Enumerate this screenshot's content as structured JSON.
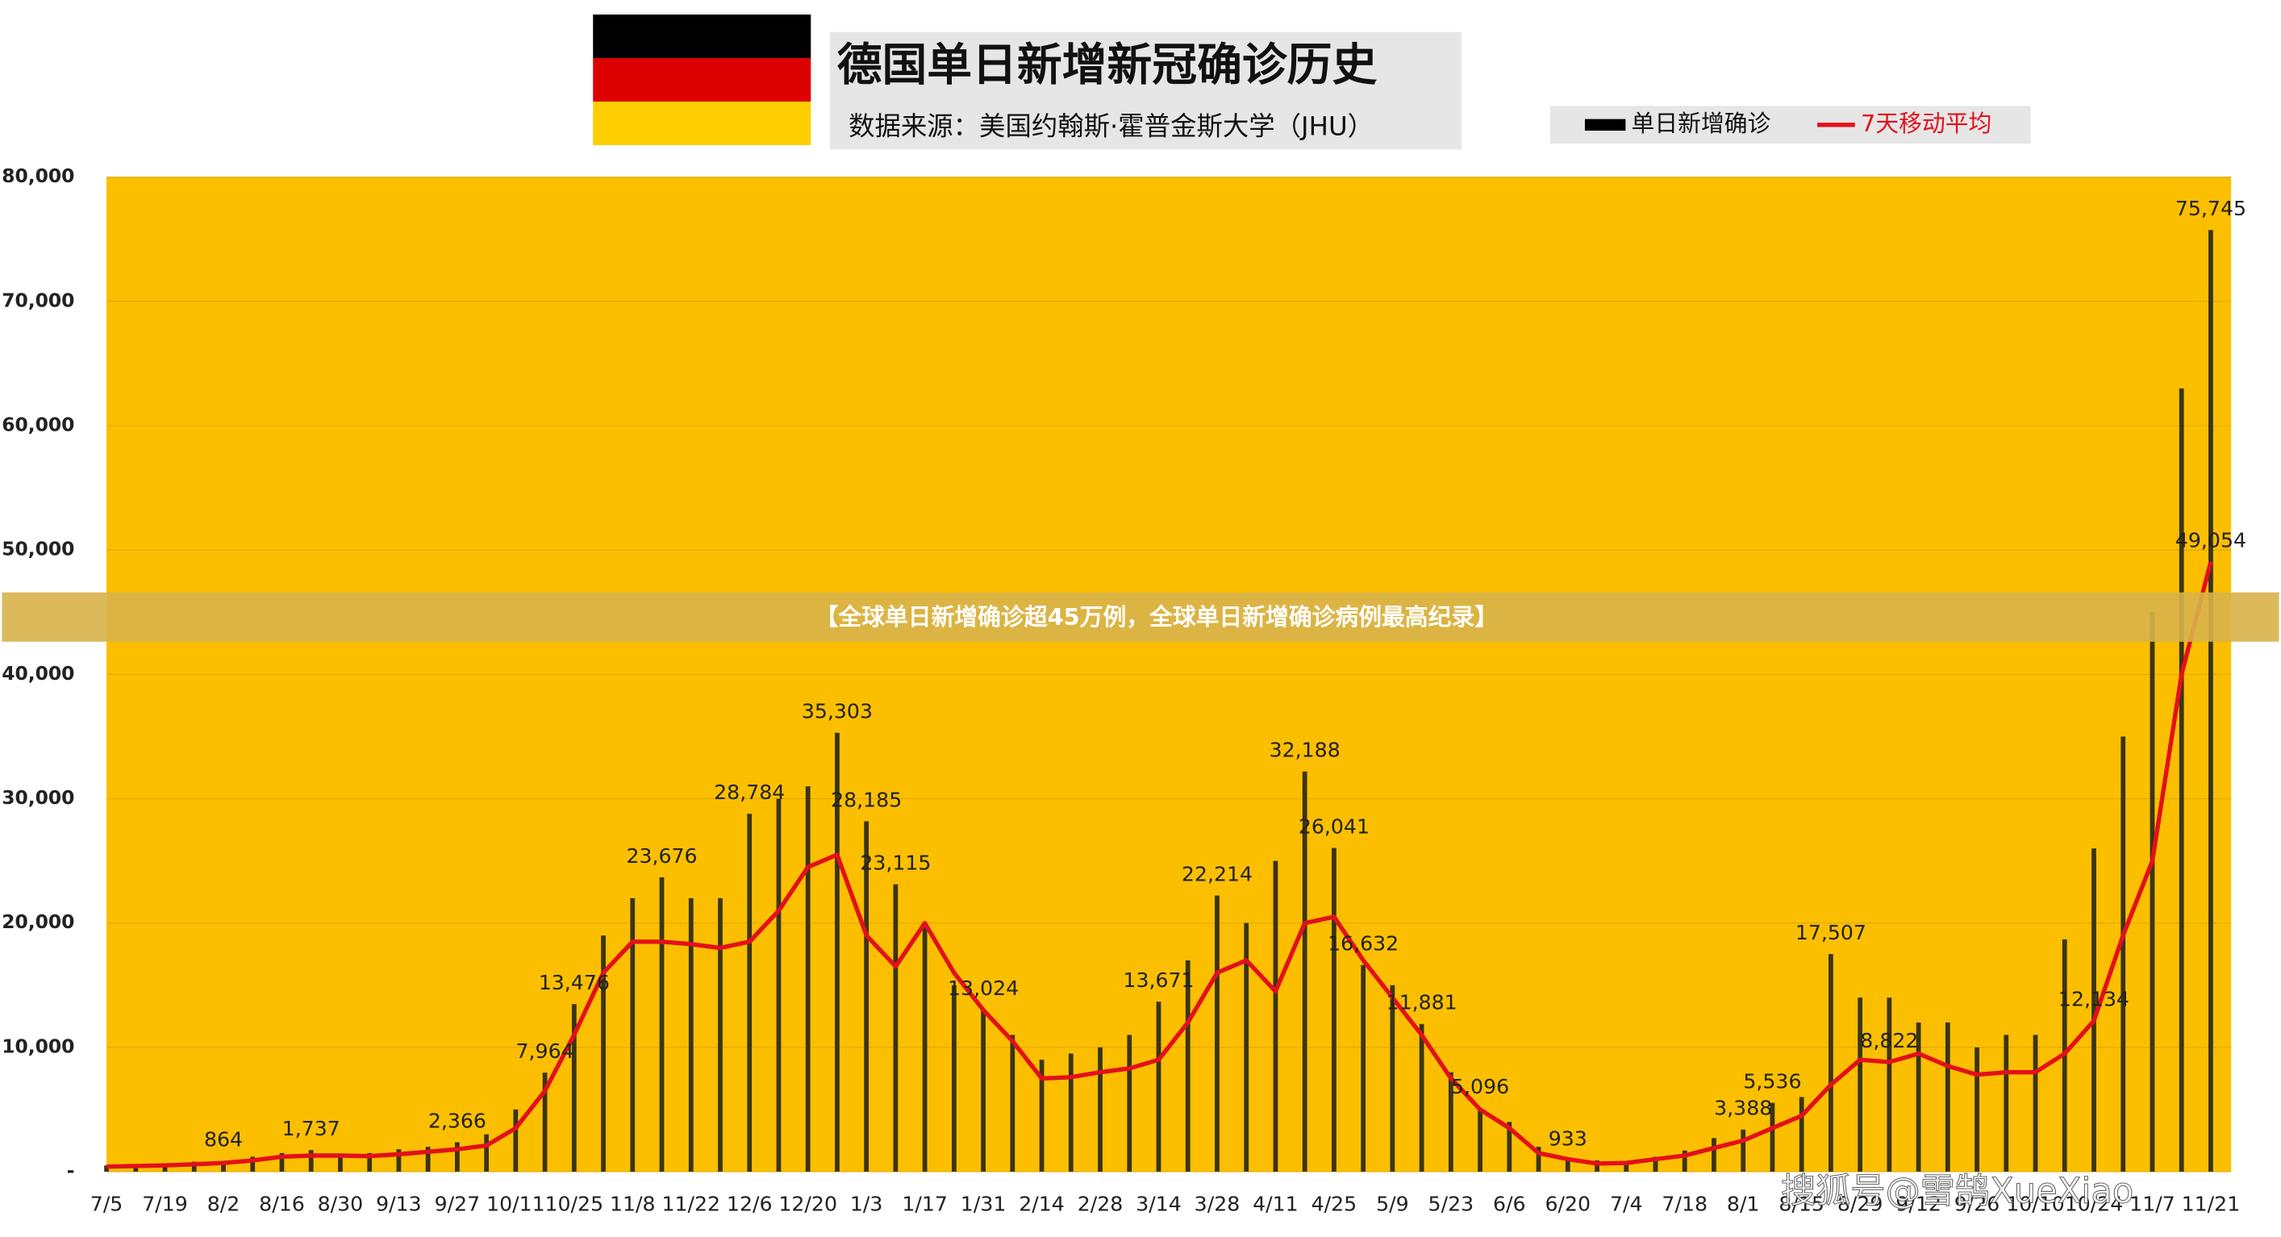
{
  "chart_data": {
    "type": "bar",
    "title": "德国单日新增新冠确诊历史",
    "subtitle": "数据来源：美国约翰斯·霍普金斯大学（JHU）",
    "background": "#fbbf00",
    "categories": [
      "7/5",
      null,
      "7/19",
      null,
      "8/2",
      null,
      "8/16",
      null,
      "8/30",
      null,
      "9/13",
      null,
      "9/27",
      null,
      "10/11",
      null,
      "10/25",
      null,
      "11/8",
      null,
      "11/22",
      null,
      "12/6",
      null,
      "12/20",
      null,
      "1/3",
      null,
      "1/17",
      null,
      "1/31",
      null,
      "2/14",
      null,
      "2/28",
      null,
      "3/14",
      null,
      "3/28",
      null,
      "4/11",
      null,
      "4/25",
      null,
      "5/9",
      null,
      "5/23",
      null,
      "6/6",
      null,
      "6/20",
      null,
      "7/4",
      null,
      "7/18",
      null,
      "8/1",
      null,
      "8/15",
      null,
      "8/29",
      null,
      "9/12",
      null,
      "9/26",
      null,
      "10/10",
      null,
      "10/24",
      null,
      "11/7",
      null,
      "11/21"
    ],
    "series": [
      {
        "name": "单日新增确诊",
        "type": "bar",
        "color": "#3b3413",
        "values": [
          500,
          500,
          600,
          800,
          864,
          1200,
          1500,
          1737,
          1400,
          1500,
          1800,
          2000,
          2366,
          3000,
          5000,
          7964,
          13476,
          19000,
          22000,
          23676,
          22000,
          22000,
          28784,
          30000,
          31000,
          35303,
          28185,
          23115,
          20000,
          15000,
          13024,
          11000,
          9000,
          9500,
          10000,
          11000,
          13671,
          17000,
          22214,
          20000,
          25000,
          32188,
          26041,
          16632,
          15000,
          11881,
          8000,
          5096,
          4000,
          2000,
          933,
          900,
          800,
          1200,
          1700,
          2700,
          3388,
          5536,
          6000,
          17507,
          14000,
          14000,
          12000,
          12000,
          10000,
          11000,
          11000,
          18681,
          26000,
          35000,
          45000,
          63000,
          75745
        ],
        "value_labels": [
          null,
          null,
          null,
          null,
          "864",
          null,
          null,
          "1,737",
          null,
          null,
          null,
          null,
          "2,366",
          null,
          null,
          "7,964",
          "13,476",
          null,
          null,
          "23,676",
          null,
          null,
          "28,784",
          null,
          null,
          "35,303",
          "28,185",
          "23,115",
          null,
          null,
          "13,024",
          null,
          null,
          null,
          null,
          null,
          "13,671",
          null,
          "22,214",
          null,
          null,
          "32,188",
          "26,041",
          "16,632",
          null,
          "11,881",
          null,
          "5,096",
          null,
          null,
          "933",
          null,
          null,
          null,
          null,
          null,
          "3,388",
          "5,536",
          null,
          "17,507",
          null,
          null,
          null,
          null,
          null,
          null,
          null,
          null,
          null,
          null,
          null,
          null,
          "75,745"
        ]
      },
      {
        "name": "7天移动平均",
        "type": "line",
        "color": "#e3101b",
        "values": [
          400,
          450,
          500,
          600,
          700,
          900,
          1200,
          1300,
          1300,
          1250,
          1400,
          1600,
          1800,
          2100,
          3500,
          6500,
          11000,
          16000,
          18500,
          18500,
          18300,
          18000,
          18500,
          21000,
          24500,
          25500,
          19000,
          16500,
          20000,
          16000,
          13000,
          10500,
          7500,
          7600,
          8000,
          8300,
          9000,
          12000,
          16000,
          17000,
          14500,
          20000,
          20500,
          17000,
          14000,
          11000,
          7500,
          5000,
          3500,
          1500,
          1000,
          650,
          700,
          1000,
          1300,
          1900,
          2500,
          3500,
          4500,
          7000,
          9000,
          8822,
          9500,
          8500,
          7800,
          8000,
          8000,
          9500,
          12134,
          19000,
          25000,
          40000,
          49054
        ],
        "value_labels": [
          null,
          null,
          null,
          null,
          null,
          null,
          null,
          null,
          null,
          null,
          null,
          null,
          null,
          null,
          null,
          null,
          null,
          null,
          null,
          null,
          null,
          null,
          null,
          null,
          null,
          null,
          null,
          null,
          null,
          null,
          null,
          null,
          null,
          null,
          null,
          null,
          null,
          null,
          null,
          null,
          null,
          null,
          null,
          null,
          null,
          null,
          null,
          null,
          null,
          null,
          null,
          null,
          null,
          null,
          null,
          null,
          null,
          null,
          null,
          null,
          null,
          "8,822",
          null,
          null,
          null,
          null,
          null,
          null,
          "12,134",
          null,
          null,
          null,
          "49,054"
        ]
      }
    ],
    "ylim": [
      0,
      80000
    ],
    "yticks": [
      {
        "value": 0,
        "label": "-"
      },
      {
        "value": 10000,
        "label": "10,000"
      },
      {
        "value": 20000,
        "label": "20,000"
      },
      {
        "value": 30000,
        "label": "30,000"
      },
      {
        "value": 40000,
        "label": "40,000"
      },
      {
        "value": 50000,
        "label": "50,000"
      },
      {
        "value": 60000,
        "label": "60,000"
      },
      {
        "value": 70000,
        "label": "70,000"
      },
      {
        "value": 80000,
        "label": "80,000"
      }
    ],
    "grid": true
  },
  "banner": "【全球单日新增确诊超45万例，全球单日新增确诊病例最高纪录】",
  "watermark": "搜狐号@雪鹄XueXiao"
}
